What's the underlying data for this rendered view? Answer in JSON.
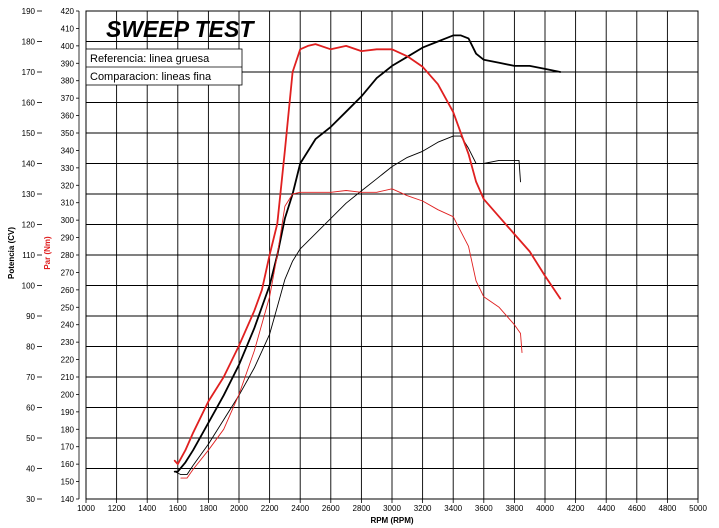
{
  "chart_data": {
    "type": "line",
    "title": "SWEEP TEST",
    "xlabel": "RPM (RPM)",
    "ylabel_left": "Potencia (CV)",
    "ylabel_right": "Par (Nm)",
    "xlim": [
      1000,
      5000
    ],
    "ylim_power": [
      30,
      190
    ],
    "ylim_torque": [
      140,
      420
    ],
    "x_ticks": [
      1000,
      1200,
      1400,
      1600,
      1800,
      2000,
      2200,
      2400,
      2600,
      2800,
      3000,
      3200,
      3400,
      3600,
      3800,
      4000,
      4200,
      4400,
      4600,
      4800,
      5000
    ],
    "power_ticks": [
      30,
      40,
      50,
      60,
      70,
      80,
      90,
      100,
      110,
      120,
      130,
      140,
      150,
      160,
      170,
      180,
      190
    ],
    "torque_ticks": [
      140,
      150,
      160,
      170,
      180,
      190,
      200,
      210,
      220,
      230,
      240,
      250,
      260,
      270,
      280,
      290,
      300,
      310,
      320,
      330,
      340,
      350,
      360,
      370,
      380,
      390,
      400,
      410,
      420
    ],
    "legend": {
      "reference": "Referencia: linea gruesa",
      "comparison": "Comparacion: lineas fina"
    },
    "colors": {
      "power": "#000000",
      "torque": "#e02020"
    },
    "series": [
      {
        "name": "Potencia referencia",
        "axis": "power",
        "color": "#000000",
        "style": "thick",
        "x": [
          1580,
          1600,
          1650,
          1700,
          1800,
          1900,
          2000,
          2100,
          2200,
          2250,
          2300,
          2350,
          2400,
          2500,
          2600,
          2700,
          2800,
          2900,
          3000,
          3100,
          3200,
          3300,
          3350,
          3400,
          3450,
          3500,
          3550,
          3600,
          3700,
          3800,
          3900,
          4000,
          4100
        ],
        "y": [
          39,
          39,
          42,
          46,
          55,
          64,
          74,
          86,
          100,
          110,
          122,
          130,
          140,
          148,
          152,
          157,
          162,
          168,
          172,
          175,
          178,
          180,
          181,
          182,
          182,
          181,
          176,
          174,
          173,
          172,
          172,
          171,
          170
        ]
      },
      {
        "name": "Potencia comparacion",
        "axis": "power",
        "color": "#000000",
        "style": "thin",
        "x": [
          1580,
          1620,
          1660,
          1700,
          1800,
          1900,
          2000,
          2100,
          2200,
          2250,
          2300,
          2350,
          2400,
          2500,
          2600,
          2700,
          2800,
          2900,
          3000,
          3100,
          3200,
          3300,
          3400,
          3450,
          3500,
          3550,
          3600,
          3700,
          3800,
          3830,
          3840
        ],
        "y": [
          39,
          38,
          38,
          41,
          48,
          56,
          64,
          73,
          84,
          93,
          102,
          108,
          112,
          117,
          122,
          127,
          131,
          135,
          139,
          142,
          144,
          147,
          149,
          149,
          145,
          140,
          140,
          141,
          141,
          141,
          134
        ]
      },
      {
        "name": "Par referencia",
        "axis": "torque",
        "color": "#e02020",
        "style": "thick",
        "x": [
          1580,
          1600,
          1650,
          1700,
          1800,
          1900,
          2000,
          2100,
          2150,
          2200,
          2250,
          2300,
          2350,
          2400,
          2450,
          2500,
          2600,
          2700,
          2800,
          2900,
          3000,
          3100,
          3200,
          3300,
          3400,
          3500,
          3550,
          3600,
          3700,
          3800,
          3900,
          4000,
          4100
        ],
        "y": [
          162,
          160,
          168,
          178,
          196,
          210,
          228,
          248,
          260,
          280,
          298,
          340,
          385,
          398,
          400,
          401,
          398,
          400,
          397,
          398,
          398,
          394,
          388,
          378,
          362,
          338,
          322,
          312,
          302,
          292,
          282,
          268,
          255
        ]
      },
      {
        "name": "Par comparacion",
        "axis": "torque",
        "color": "#e02020",
        "style": "thin",
        "x": [
          1620,
          1660,
          1700,
          1800,
          1900,
          2000,
          2100,
          2200,
          2250,
          2300,
          2350,
          2400,
          2500,
          2600,
          2700,
          2800,
          2900,
          3000,
          3100,
          3200,
          3300,
          3400,
          3500,
          3550,
          3600,
          3700,
          3800,
          3840,
          3850
        ],
        "y": [
          152,
          152,
          157,
          168,
          180,
          200,
          225,
          256,
          280,
          308,
          315,
          316,
          316,
          316,
          317,
          316,
          316,
          318,
          314,
          311,
          306,
          302,
          285,
          265,
          256,
          250,
          240,
          235,
          224
        ]
      }
    ]
  }
}
